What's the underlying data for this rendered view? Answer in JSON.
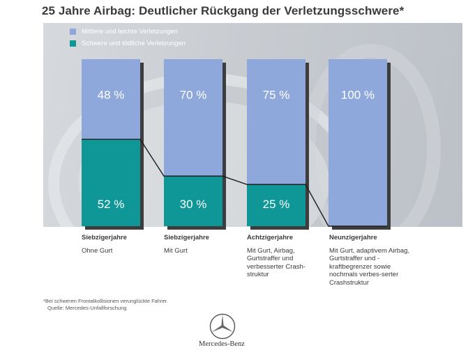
{
  "title": "25 Jahre Airbag: Deutlicher Rückgang der Verletzungsschwere*",
  "colors": {
    "light": "#8fa8dc",
    "severe": "#0f9696",
    "shadow": "#3d3d3d",
    "line": "#1e1e1e",
    "text": "#3a3a3a"
  },
  "legend": {
    "items": [
      {
        "label": "Mittlere und leichte Verletzungen",
        "color": "#8fa8dc"
      },
      {
        "label": "Schwere und tödliche Verletzungen",
        "color": "#0f9696"
      }
    ]
  },
  "chart_data": {
    "type": "bar",
    "stacked": true,
    "categories": [
      "Siebzigerjahre",
      "Siebzigerjahre",
      "Achtzigerjahre",
      "Neunzigerjahre"
    ],
    "descriptions": [
      "Ohne Gurt",
      "Mit Gurt",
      "Mit Gurt, Airbag, Gurtstraffer und verbesserter Crash-struktur",
      "Mit Gurt, adaptivem Airbag, Gurtstraffer und -kraftbegrenzer sowie nochmals verbes-serter Crashstruktur"
    ],
    "series": [
      {
        "name": "Schwere und tödliche Verletzungen",
        "values": [
          52,
          30,
          25,
          0
        ],
        "labels": [
          "52 %",
          "30 %",
          "25 %",
          ""
        ]
      },
      {
        "name": "Mittlere und leichte Verletzungen",
        "values": [
          48,
          70,
          75,
          100
        ],
        "labels": [
          "48 %",
          "70 %",
          "75 %",
          "100 %"
        ]
      }
    ],
    "ylim": [
      0,
      100
    ],
    "unit": "%",
    "connector_line": true
  },
  "footnote": "*Bei schweren Frontalkollisionen verunglückte Fahrer.",
  "source": "Quelle: Mercedes-Unfallforschung",
  "brand": {
    "name": "Mercedes-Benz",
    "logo_icon": "three-pointed-star-icon"
  }
}
